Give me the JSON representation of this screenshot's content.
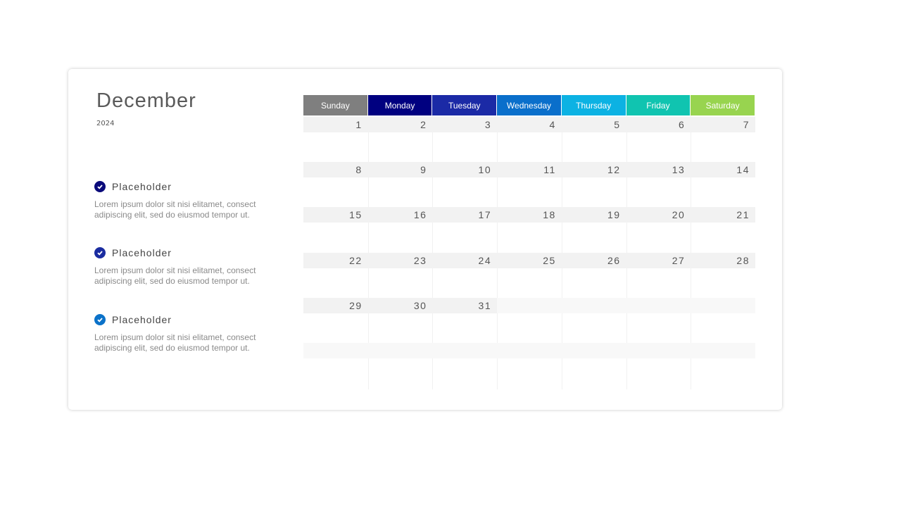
{
  "title": {
    "month": "December",
    "year": "2024"
  },
  "items": [
    {
      "label": "Placeholder",
      "desc": "Lorem ipsum dolor sit nisi elitamet, consect adipiscing elit, sed do eiusmod tempor ut.",
      "color": "#0a0a7a",
      "icon": "check-circle-icon"
    },
    {
      "label": "Placeholder",
      "desc": "Lorem ipsum dolor sit nisi elitamet, consect adipiscing elit, sed do eiusmod tempor ut.",
      "color": "#1a2ca0",
      "icon": "check-circle-icon"
    },
    {
      "label": "Placeholder",
      "desc": "Lorem ipsum dolor sit nisi elitamet, consect adipiscing elit, sed do eiusmod tempor ut.",
      "color": "#0b72c9",
      "icon": "check-circle-icon"
    }
  ],
  "calendar": {
    "days": [
      {
        "name": "Sunday",
        "color": "#7f7f7f"
      },
      {
        "name": "Monday",
        "color": "#000080"
      },
      {
        "name": "Tuesday",
        "color": "#1b2aa6"
      },
      {
        "name": "Wednesday",
        "color": "#0a6fcb"
      },
      {
        "name": "Thursday",
        "color": "#0cb2e3"
      },
      {
        "name": "Friday",
        "color": "#10c4b0"
      },
      {
        "name": "Saturday",
        "color": "#98d44f"
      }
    ],
    "weeks": [
      [
        "1",
        "2",
        "3",
        "4",
        "5",
        "6",
        "7"
      ],
      [
        "8",
        "9",
        "10",
        "11",
        "12",
        "13",
        "14"
      ],
      [
        "15",
        "16",
        "17",
        "18",
        "19",
        "20",
        "21"
      ],
      [
        "22",
        "23",
        "24",
        "25",
        "26",
        "27",
        "28"
      ],
      [
        "29",
        "30",
        "31",
        null,
        null,
        null,
        null
      ],
      [
        null,
        null,
        null,
        null,
        null,
        null,
        null
      ]
    ]
  }
}
